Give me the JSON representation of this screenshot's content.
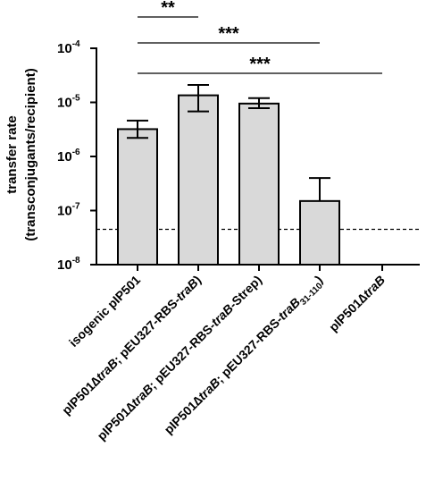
{
  "chart_data": {
    "type": "bar",
    "ylabel_line1": "transfer rate",
    "ylabel_line2": "(transconjugants/recipient)",
    "yscale": "log",
    "ylim": [
      1e-08,
      0.0001
    ],
    "y_ticks": [
      {
        "value": 0.0001,
        "base": "10",
        "exp": "-4"
      },
      {
        "value": 1e-05,
        "base": "10",
        "exp": "-5"
      },
      {
        "value": 1e-06,
        "base": "10",
        "exp": "-6"
      },
      {
        "value": 1e-07,
        "base": "10",
        "exp": "-7"
      },
      {
        "value": 1e-08,
        "base": "10",
        "exp": "-8"
      }
    ],
    "categories": [
      {
        "segments": [
          {
            "t": "isogenic pIP501",
            "i": false
          }
        ]
      },
      {
        "segments": [
          {
            "t": "pIP501∆",
            "i": false
          },
          {
            "t": "traB",
            "i": true
          },
          {
            "t": "; pEU327-RBS-",
            "i": false
          },
          {
            "t": "traB",
            "i": true
          },
          {
            "t": ")",
            "i": false
          }
        ]
      },
      {
        "segments": [
          {
            "t": "pIP501∆",
            "i": false
          },
          {
            "t": "traB",
            "i": true
          },
          {
            "t": "; pEU327-RBS-",
            "i": false
          },
          {
            "t": "traB",
            "i": true
          },
          {
            "t": "-Strep)",
            "i": false
          }
        ]
      },
      {
        "segments": [
          {
            "t": "pIP501∆",
            "i": false
          },
          {
            "t": "traB",
            "i": true
          },
          {
            "t": "; pEU327-RBS-",
            "i": false
          },
          {
            "t": "traB",
            "i": true
          },
          {
            "t": "31-110",
            "i": false,
            "sub": true
          },
          {
            "t": ")",
            "i": false
          }
        ]
      },
      {
        "segments": [
          {
            "t": "pIP501∆",
            "i": false
          },
          {
            "t": "traB",
            "i": true
          }
        ]
      }
    ],
    "values": [
      3.2e-06,
      1.35e-05,
      9.5e-06,
      1.5e-07,
      null
    ],
    "errors_upper": [
      4.6e-06,
      2.1e-05,
      1.2e-05,
      4e-07,
      null
    ],
    "errors_lower": [
      2.2e-06,
      6.8e-06,
      7.8e-06,
      null,
      null
    ],
    "reference_line": {
      "value": 4.5e-08,
      "style": "dashed"
    },
    "significance": [
      {
        "from": 0,
        "to": 1,
        "label": "**"
      },
      {
        "from": 0,
        "to": 3,
        "label": "***"
      },
      {
        "from": 0,
        "to": 4,
        "label": "***"
      }
    ],
    "bar_color": "#d9d9d9",
    "edge_color": "#000000"
  }
}
